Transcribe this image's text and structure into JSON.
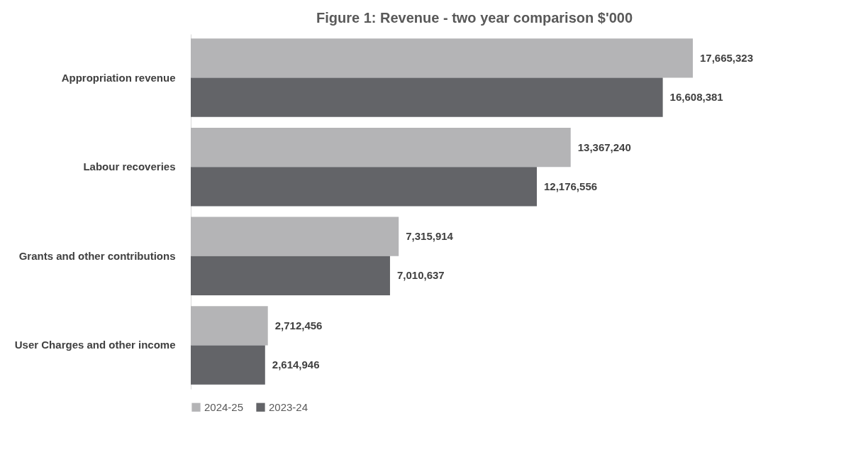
{
  "chart_data": {
    "type": "bar",
    "orientation": "horizontal",
    "title": "Figure 1: Revenue - two year comparison $'000",
    "categories": [
      "Appropriation revenue",
      "Labour recoveries",
      "Grants and other contributions",
      "User Charges and other income"
    ],
    "series": [
      {
        "name": "2024-25",
        "color": "#b4b4b6",
        "values": [
          17665323,
          13367240,
          7315914,
          2712456
        ],
        "value_labels": [
          "17,665,323",
          "13,367,240",
          "7,315,914",
          "2,712,456"
        ]
      },
      {
        "name": "2023-24",
        "color": "#636468",
        "values": [
          16608381,
          12176556,
          7010637,
          2614946
        ],
        "value_labels": [
          "16,608,381",
          "12,176,556",
          "7,010,637",
          "2,614,946"
        ]
      }
    ],
    "legend": "bottom"
  }
}
